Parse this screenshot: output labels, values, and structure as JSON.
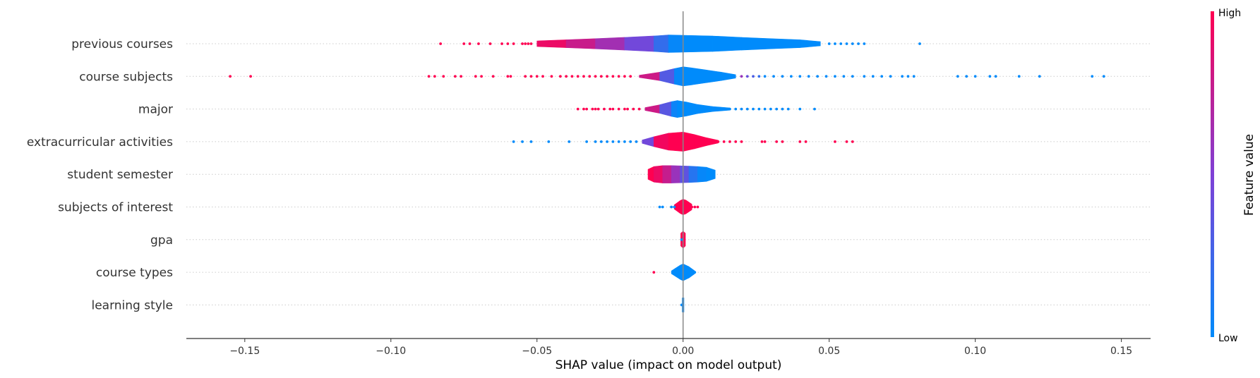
{
  "chart_data": {
    "type": "violin",
    "xlabel": "SHAP value (impact on model output)",
    "xlim": [
      -0.17,
      0.16
    ],
    "xticks": [
      -0.15,
      -0.1,
      -0.05,
      0.0,
      0.05,
      0.1,
      0.15
    ],
    "xtick_labels": [
      "−0.15",
      "−0.10",
      "−0.05",
      "0.00",
      "0.05",
      "0.10",
      "0.15"
    ],
    "colorbar": {
      "label": "Feature value",
      "high_label": "High",
      "low_label": "Low",
      "low_color": "#008bfb",
      "high_color": "#ff0051"
    },
    "features": [
      {
        "name": "previous courses",
        "violin": [
          {
            "x": -0.05,
            "hw": 0.2,
            "c": 1.0
          },
          {
            "x": -0.04,
            "hw": 0.28,
            "c": 0.85
          },
          {
            "x": -0.03,
            "hw": 0.36,
            "c": 0.72
          },
          {
            "x": -0.02,
            "hw": 0.45,
            "c": 0.55
          },
          {
            "x": -0.01,
            "hw": 0.55,
            "c": 0.35
          },
          {
            "x": -0.005,
            "hw": 0.62,
            "c": 0.05
          },
          {
            "x": 0.0,
            "hw": 0.6,
            "c": 0.0
          },
          {
            "x": 0.01,
            "hw": 0.55,
            "c": 0.0
          },
          {
            "x": 0.02,
            "hw": 0.45,
            "c": 0.0
          },
          {
            "x": 0.03,
            "hw": 0.36,
            "c": 0.0
          },
          {
            "x": 0.04,
            "hw": 0.28,
            "c": 0.0
          },
          {
            "x": 0.047,
            "hw": 0.15,
            "c": 0.0
          }
        ],
        "points": [
          {
            "x": -0.083,
            "c": 1
          },
          {
            "x": -0.075,
            "c": 1
          },
          {
            "x": -0.073,
            "c": 1
          },
          {
            "x": -0.07,
            "c": 1
          },
          {
            "x": -0.066,
            "c": 1
          },
          {
            "x": -0.062,
            "c": 1
          },
          {
            "x": -0.06,
            "c": 1
          },
          {
            "x": -0.058,
            "c": 1
          },
          {
            "x": -0.055,
            "c": 1
          },
          {
            "x": -0.054,
            "c": 1
          },
          {
            "x": -0.053,
            "c": 1
          },
          {
            "x": -0.052,
            "c": 1
          },
          {
            "x": 0.05,
            "c": 0
          },
          {
            "x": 0.052,
            "c": 0
          },
          {
            "x": 0.054,
            "c": 0
          },
          {
            "x": 0.056,
            "c": 0
          },
          {
            "x": 0.058,
            "c": 0
          },
          {
            "x": 0.06,
            "c": 0
          },
          {
            "x": 0.062,
            "c": 0
          },
          {
            "x": 0.081,
            "c": 0
          }
        ]
      },
      {
        "name": "course subjects",
        "violin": [
          {
            "x": -0.015,
            "hw": 0.08,
            "c": 1.0
          },
          {
            "x": -0.008,
            "hw": 0.3,
            "c": 0.6
          },
          {
            "x": -0.003,
            "hw": 0.55,
            "c": 0.05
          },
          {
            "x": 0.0,
            "hw": 0.68,
            "c": 0.0
          },
          {
            "x": 0.003,
            "hw": 0.6,
            "c": 0.0
          },
          {
            "x": 0.008,
            "hw": 0.45,
            "c": 0.0
          },
          {
            "x": 0.013,
            "hw": 0.3,
            "c": 0.0
          },
          {
            "x": 0.018,
            "hw": 0.12,
            "c": 0.0
          }
        ],
        "points": [
          {
            "x": -0.155,
            "c": 1
          },
          {
            "x": -0.148,
            "c": 1
          },
          {
            "x": -0.087,
            "c": 1
          },
          {
            "x": -0.085,
            "c": 1
          },
          {
            "x": -0.082,
            "c": 1
          },
          {
            "x": -0.078,
            "c": 1
          },
          {
            "x": -0.076,
            "c": 1
          },
          {
            "x": -0.071,
            "c": 1
          },
          {
            "x": -0.069,
            "c": 1
          },
          {
            "x": -0.065,
            "c": 1
          },
          {
            "x": -0.06,
            "c": 1
          },
          {
            "x": -0.059,
            "c": 1
          },
          {
            "x": -0.054,
            "c": 1
          },
          {
            "x": -0.052,
            "c": 1
          },
          {
            "x": -0.05,
            "c": 1
          },
          {
            "x": -0.048,
            "c": 1
          },
          {
            "x": -0.045,
            "c": 1
          },
          {
            "x": -0.042,
            "c": 1
          },
          {
            "x": -0.04,
            "c": 1
          },
          {
            "x": -0.038,
            "c": 1
          },
          {
            "x": -0.036,
            "c": 1
          },
          {
            "x": -0.034,
            "c": 1
          },
          {
            "x": -0.032,
            "c": 1
          },
          {
            "x": -0.03,
            "c": 1
          },
          {
            "x": -0.028,
            "c": 1
          },
          {
            "x": -0.026,
            "c": 1
          },
          {
            "x": -0.024,
            "c": 1
          },
          {
            "x": -0.022,
            "c": 1
          },
          {
            "x": -0.02,
            "c": 1
          },
          {
            "x": -0.018,
            "c": 1
          },
          {
            "x": 0.02,
            "c": 0.6
          },
          {
            "x": 0.022,
            "c": 0.4
          },
          {
            "x": 0.024,
            "c": 0.3
          },
          {
            "x": 0.026,
            "c": 0.2
          },
          {
            "x": 0.028,
            "c": 0
          },
          {
            "x": 0.031,
            "c": 0
          },
          {
            "x": 0.034,
            "c": 0
          },
          {
            "x": 0.037,
            "c": 0
          },
          {
            "x": 0.04,
            "c": 0
          },
          {
            "x": 0.043,
            "c": 0
          },
          {
            "x": 0.046,
            "c": 0
          },
          {
            "x": 0.049,
            "c": 0
          },
          {
            "x": 0.052,
            "c": 0
          },
          {
            "x": 0.055,
            "c": 0
          },
          {
            "x": 0.058,
            "c": 0
          },
          {
            "x": 0.062,
            "c": 0
          },
          {
            "x": 0.065,
            "c": 0
          },
          {
            "x": 0.068,
            "c": 0
          },
          {
            "x": 0.071,
            "c": 0
          },
          {
            "x": 0.075,
            "c": 0
          },
          {
            "x": 0.077,
            "c": 0
          },
          {
            "x": 0.079,
            "c": 0
          },
          {
            "x": 0.094,
            "c": 0
          },
          {
            "x": 0.097,
            "c": 0
          },
          {
            "x": 0.1,
            "c": 0
          },
          {
            "x": 0.105,
            "c": 0
          },
          {
            "x": 0.107,
            "c": 0
          },
          {
            "x": 0.115,
            "c": 0
          },
          {
            "x": 0.122,
            "c": 0
          },
          {
            "x": 0.14,
            "c": 0
          },
          {
            "x": 0.144,
            "c": 0
          }
        ]
      },
      {
        "name": "major",
        "violin": [
          {
            "x": -0.013,
            "hw": 0.1,
            "c": 1.0
          },
          {
            "x": -0.008,
            "hw": 0.3,
            "c": 0.6
          },
          {
            "x": -0.004,
            "hw": 0.52,
            "c": 0.1
          },
          {
            "x": -0.002,
            "hw": 0.6,
            "c": 0.0
          },
          {
            "x": 0.001,
            "hw": 0.5,
            "c": 0.0
          },
          {
            "x": 0.005,
            "hw": 0.32,
            "c": 0.0
          },
          {
            "x": 0.01,
            "hw": 0.18,
            "c": 0.0
          },
          {
            "x": 0.016,
            "hw": 0.08,
            "c": 0.0
          }
        ],
        "points": [
          {
            "x": -0.036,
            "c": 1
          },
          {
            "x": -0.034,
            "c": 1
          },
          {
            "x": -0.033,
            "c": 1
          },
          {
            "x": -0.031,
            "c": 1
          },
          {
            "x": -0.03,
            "c": 1
          },
          {
            "x": -0.029,
            "c": 1
          },
          {
            "x": -0.027,
            "c": 1
          },
          {
            "x": -0.025,
            "c": 1
          },
          {
            "x": -0.024,
            "c": 1
          },
          {
            "x": -0.022,
            "c": 1
          },
          {
            "x": -0.02,
            "c": 1
          },
          {
            "x": -0.019,
            "c": 1
          },
          {
            "x": -0.017,
            "c": 1
          },
          {
            "x": -0.015,
            "c": 1
          },
          {
            "x": 0.016,
            "c": 0
          },
          {
            "x": 0.018,
            "c": 0
          },
          {
            "x": 0.02,
            "c": 0
          },
          {
            "x": 0.022,
            "c": 0
          },
          {
            "x": 0.024,
            "c": 0
          },
          {
            "x": 0.026,
            "c": 0
          },
          {
            "x": 0.028,
            "c": 0
          },
          {
            "x": 0.03,
            "c": 0
          },
          {
            "x": 0.032,
            "c": 0
          },
          {
            "x": 0.034,
            "c": 0
          },
          {
            "x": 0.036,
            "c": 0
          },
          {
            "x": 0.04,
            "c": 0
          },
          {
            "x": 0.045,
            "c": 0
          }
        ]
      },
      {
        "name": "extracurricular activities",
        "violin": [
          {
            "x": -0.014,
            "hw": 0.12,
            "c": 0.0
          },
          {
            "x": -0.01,
            "hw": 0.35,
            "c": 0.9
          },
          {
            "x": -0.005,
            "hw": 0.6,
            "c": 1.0
          },
          {
            "x": 0.0,
            "hw": 0.68,
            "c": 1.0
          },
          {
            "x": 0.004,
            "hw": 0.5,
            "c": 1.0
          },
          {
            "x": 0.008,
            "hw": 0.28,
            "c": 1.0
          },
          {
            "x": 0.012,
            "hw": 0.1,
            "c": 1.0
          }
        ],
        "points": [
          {
            "x": -0.058,
            "c": 0
          },
          {
            "x": -0.055,
            "c": 0
          },
          {
            "x": -0.052,
            "c": 0
          },
          {
            "x": -0.046,
            "c": 0
          },
          {
            "x": -0.039,
            "c": 0
          },
          {
            "x": -0.033,
            "c": 0
          },
          {
            "x": -0.03,
            "c": 0
          },
          {
            "x": -0.028,
            "c": 0
          },
          {
            "x": -0.026,
            "c": 0
          },
          {
            "x": -0.024,
            "c": 0
          },
          {
            "x": -0.022,
            "c": 0
          },
          {
            "x": -0.02,
            "c": 0
          },
          {
            "x": -0.018,
            "c": 0
          },
          {
            "x": -0.016,
            "c": 0
          },
          {
            "x": 0.012,
            "c": 1
          },
          {
            "x": 0.014,
            "c": 1
          },
          {
            "x": 0.016,
            "c": 1
          },
          {
            "x": 0.018,
            "c": 1
          },
          {
            "x": 0.02,
            "c": 1
          },
          {
            "x": 0.027,
            "c": 1
          },
          {
            "x": 0.028,
            "c": 1
          },
          {
            "x": 0.032,
            "c": 1
          },
          {
            "x": 0.034,
            "c": 1
          },
          {
            "x": 0.04,
            "c": 1
          },
          {
            "x": 0.042,
            "c": 1
          },
          {
            "x": 0.052,
            "c": 1
          },
          {
            "x": 0.056,
            "c": 1
          },
          {
            "x": 0.058,
            "c": 1
          }
        ]
      },
      {
        "name": "student semester",
        "violin": [
          {
            "x": -0.012,
            "hw": 0.35,
            "c": 1.0
          },
          {
            "x": -0.01,
            "hw": 0.55,
            "c": 1.0
          },
          {
            "x": -0.007,
            "hw": 0.62,
            "c": 0.85
          },
          {
            "x": -0.004,
            "hw": 0.62,
            "c": 0.7
          },
          {
            "x": -0.001,
            "hw": 0.6,
            "c": 0.5
          },
          {
            "x": 0.002,
            "hw": 0.58,
            "c": 0.25
          },
          {
            "x": 0.005,
            "hw": 0.55,
            "c": 0.05
          },
          {
            "x": 0.008,
            "hw": 0.5,
            "c": 0.0
          },
          {
            "x": 0.011,
            "hw": 0.3,
            "c": 0.0
          }
        ],
        "points": []
      },
      {
        "name": "subjects of interest",
        "violin": [
          {
            "x": -0.003,
            "hw": 0.15,
            "c": 1.0
          },
          {
            "x": -0.001,
            "hw": 0.45,
            "c": 1.0
          },
          {
            "x": 0.0,
            "hw": 0.55,
            "c": 1.0
          },
          {
            "x": 0.001,
            "hw": 0.48,
            "c": 1.0
          },
          {
            "x": 0.003,
            "hw": 0.2,
            "c": 1.0
          }
        ],
        "points": [
          {
            "x": -0.008,
            "c": 0
          },
          {
            "x": -0.007,
            "c": 0
          },
          {
            "x": -0.004,
            "c": 0
          },
          {
            "x": -0.003,
            "c": 0
          },
          {
            "x": 0.003,
            "c": 1
          },
          {
            "x": 0.004,
            "c": 1
          },
          {
            "x": 0.005,
            "c": 1
          }
        ]
      },
      {
        "name": "gpa",
        "violin": [
          {
            "x": -0.0008,
            "hw": 0.45,
            "c": 1.0
          },
          {
            "x": 0.0,
            "hw": 0.6,
            "c": 1.0
          },
          {
            "x": 0.0008,
            "hw": 0.45,
            "c": 1.0
          }
        ],
        "points": [
          {
            "x": -0.0005,
            "c": 0
          }
        ]
      },
      {
        "name": "course types",
        "violin": [
          {
            "x": -0.004,
            "hw": 0.1,
            "c": 0.0
          },
          {
            "x": -0.001,
            "hw": 0.5,
            "c": 0.0
          },
          {
            "x": 0.0,
            "hw": 0.6,
            "c": 0.0
          },
          {
            "x": 0.002,
            "hw": 0.4,
            "c": 0.0
          },
          {
            "x": 0.004,
            "hw": 0.1,
            "c": 0.0
          }
        ],
        "points": [
          {
            "x": -0.01,
            "c": 1
          },
          {
            "x": -0.003,
            "c": 0
          },
          {
            "x": 0.002,
            "c": 0
          },
          {
            "x": 0.003,
            "c": 0
          },
          {
            "x": 0.004,
            "c": 0
          }
        ]
      },
      {
        "name": "learning style",
        "violin": [
          {
            "x": -0.0003,
            "hw": 0.5,
            "c": 0.0
          },
          {
            "x": 0.0003,
            "hw": 0.5,
            "c": 0.0
          }
        ],
        "points": [
          {
            "x": -0.0005,
            "c": 0
          }
        ]
      }
    ]
  }
}
